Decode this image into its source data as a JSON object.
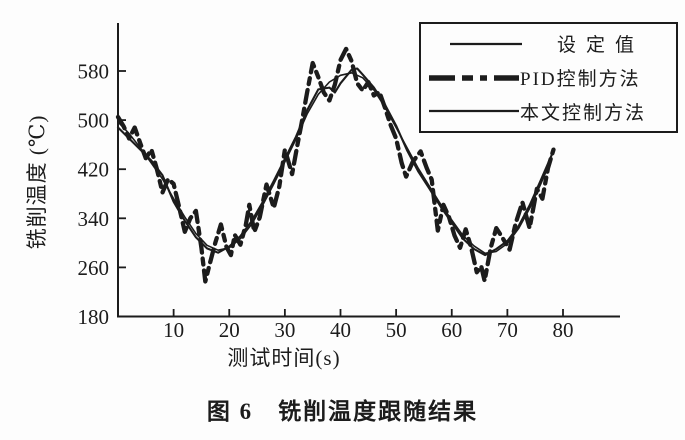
{
  "figure": {
    "caption": "图 6　铣削温度跟随结果",
    "background": "#fdfdfd",
    "ink_color": "#1c1c1c"
  },
  "chart_data": {
    "type": "line",
    "title": "图 6　铣削温度跟随结果",
    "xlabel": "测试时间(s)",
    "ylabel": "铣削温度 (℃)",
    "xlim": [
      0,
      90
    ],
    "ylim": [
      180,
      660
    ],
    "x_ticks": [
      10,
      20,
      30,
      40,
      50,
      60,
      70,
      80
    ],
    "y_ticks": [
      180,
      260,
      340,
      420,
      500,
      580
    ],
    "grid": false,
    "legend_position": "top-right",
    "series": [
      {
        "name": "设定值",
        "line": "solid",
        "weight": "thin",
        "points": [
          [
            0,
            497
          ],
          [
            2,
            478
          ],
          [
            4,
            455
          ],
          [
            6,
            430
          ],
          [
            8,
            404
          ],
          [
            10,
            372
          ],
          [
            12,
            342
          ],
          [
            14,
            315
          ],
          [
            16,
            296
          ],
          [
            18,
            288
          ],
          [
            20,
            292
          ],
          [
            22,
            307
          ],
          [
            24,
            330
          ],
          [
            26,
            361
          ],
          [
            28,
            396
          ],
          [
            30,
            432
          ],
          [
            32,
            469
          ],
          [
            34,
            510
          ],
          [
            36,
            542
          ],
          [
            38,
            562
          ],
          [
            40,
            573
          ],
          [
            42,
            577
          ],
          [
            44,
            569
          ],
          [
            46,
            549
          ],
          [
            48,
            521
          ],
          [
            50,
            488
          ],
          [
            52,
            454
          ],
          [
            54,
            421
          ],
          [
            56,
            392
          ],
          [
            58,
            363
          ],
          [
            60,
            337
          ],
          [
            62,
            312
          ],
          [
            64,
            295
          ],
          [
            66,
            283
          ],
          [
            68,
            286
          ],
          [
            70,
            299
          ],
          [
            72,
            323
          ],
          [
            74,
            356
          ],
          [
            76,
            396
          ],
          [
            78,
            438
          ]
        ]
      },
      {
        "name": "PID控制方法",
        "line": "dashed",
        "weight": "thick",
        "points": [
          [
            0,
            505
          ],
          [
            1,
            490
          ],
          [
            2,
            470
          ],
          [
            3,
            488
          ],
          [
            4,
            462
          ],
          [
            5,
            438
          ],
          [
            6,
            452
          ],
          [
            7,
            420
          ],
          [
            8,
            382
          ],
          [
            9,
            404
          ],
          [
            10,
            396
          ],
          [
            11,
            358
          ],
          [
            12,
            318
          ],
          [
            13,
            340
          ],
          [
            14,
            352
          ],
          [
            15,
            292
          ],
          [
            15.7,
            237
          ],
          [
            16.5,
            266
          ],
          [
            17.5,
            300
          ],
          [
            18.5,
            330
          ],
          [
            19.5,
            293
          ],
          [
            20.3,
            280
          ],
          [
            21,
            313
          ],
          [
            22,
            297
          ],
          [
            23,
            330
          ],
          [
            23.6,
            362
          ],
          [
            24.5,
            318
          ],
          [
            25.5,
            342
          ],
          [
            26.7,
            395
          ],
          [
            28,
            357
          ],
          [
            29,
            392
          ],
          [
            30,
            452
          ],
          [
            31.3,
            412
          ],
          [
            32.3,
            462
          ],
          [
            33,
            495
          ],
          [
            34,
            545
          ],
          [
            35,
            593
          ],
          [
            36,
            570
          ],
          [
            37,
            545
          ],
          [
            38,
            532
          ],
          [
            39,
            558
          ],
          [
            40,
            598
          ],
          [
            41,
            616
          ],
          [
            42,
            596
          ],
          [
            43,
            560
          ],
          [
            44,
            548
          ],
          [
            45,
            562
          ],
          [
            46,
            540
          ],
          [
            47,
            546
          ],
          [
            48,
            520
          ],
          [
            49,
            492
          ],
          [
            50,
            470
          ],
          [
            51,
            430
          ],
          [
            51.8,
            408
          ],
          [
            53,
            432
          ],
          [
            54.4,
            449
          ],
          [
            55.5,
            422
          ],
          [
            56.4,
            403
          ],
          [
            57.5,
            320
          ],
          [
            58.5,
            362
          ],
          [
            59.5,
            342
          ],
          [
            60.5,
            312
          ],
          [
            61.5,
            292
          ],
          [
            62.5,
            322
          ],
          [
            63.5,
            292
          ],
          [
            64.5,
            252
          ],
          [
            65.3,
            262
          ],
          [
            65.9,
            238
          ],
          [
            67,
            292
          ],
          [
            68,
            324
          ],
          [
            69,
            310
          ],
          [
            70.4,
            289
          ],
          [
            71.5,
            332
          ],
          [
            72.7,
            366
          ],
          [
            74,
            324
          ],
          [
            75.3,
            388
          ],
          [
            76.3,
            372
          ],
          [
            77.3,
            422
          ],
          [
            78.3,
            452
          ]
        ]
      },
      {
        "name": "本文控制方法",
        "line": "solid",
        "weight": "medium",
        "points": [
          [
            0,
            488
          ],
          [
            2,
            470
          ],
          [
            4,
            452
          ],
          [
            6,
            434
          ],
          [
            8,
            410
          ],
          [
            10,
            367
          ],
          [
            12,
            336
          ],
          [
            14,
            309
          ],
          [
            16,
            291
          ],
          [
            18,
            284
          ],
          [
            20,
            294
          ],
          [
            22,
            311
          ],
          [
            24,
            335
          ],
          [
            26,
            366
          ],
          [
            28,
            401
          ],
          [
            30,
            437
          ],
          [
            32,
            473
          ],
          [
            34,
            516
          ],
          [
            36,
            550
          ],
          [
            38,
            553
          ],
          [
            39,
            545
          ],
          [
            40,
            560
          ],
          [
            42,
            582
          ],
          [
            43,
            584
          ],
          [
            44,
            574
          ],
          [
            46,
            553
          ],
          [
            48,
            525
          ],
          [
            50,
            491
          ],
          [
            52,
            450
          ],
          [
            54,
            416
          ],
          [
            56,
            388
          ],
          [
            58,
            359
          ],
          [
            60,
            333
          ],
          [
            62,
            307
          ],
          [
            64,
            290
          ],
          [
            66,
            280
          ],
          [
            68,
            290
          ],
          [
            70,
            303
          ],
          [
            72,
            327
          ],
          [
            74,
            361
          ],
          [
            76,
            402
          ],
          [
            78,
            444
          ]
        ]
      }
    ]
  },
  "legend": {
    "items": [
      {
        "label": "设定值"
      },
      {
        "label": "PID控制方法"
      },
      {
        "label": "本文控制方法"
      }
    ]
  }
}
